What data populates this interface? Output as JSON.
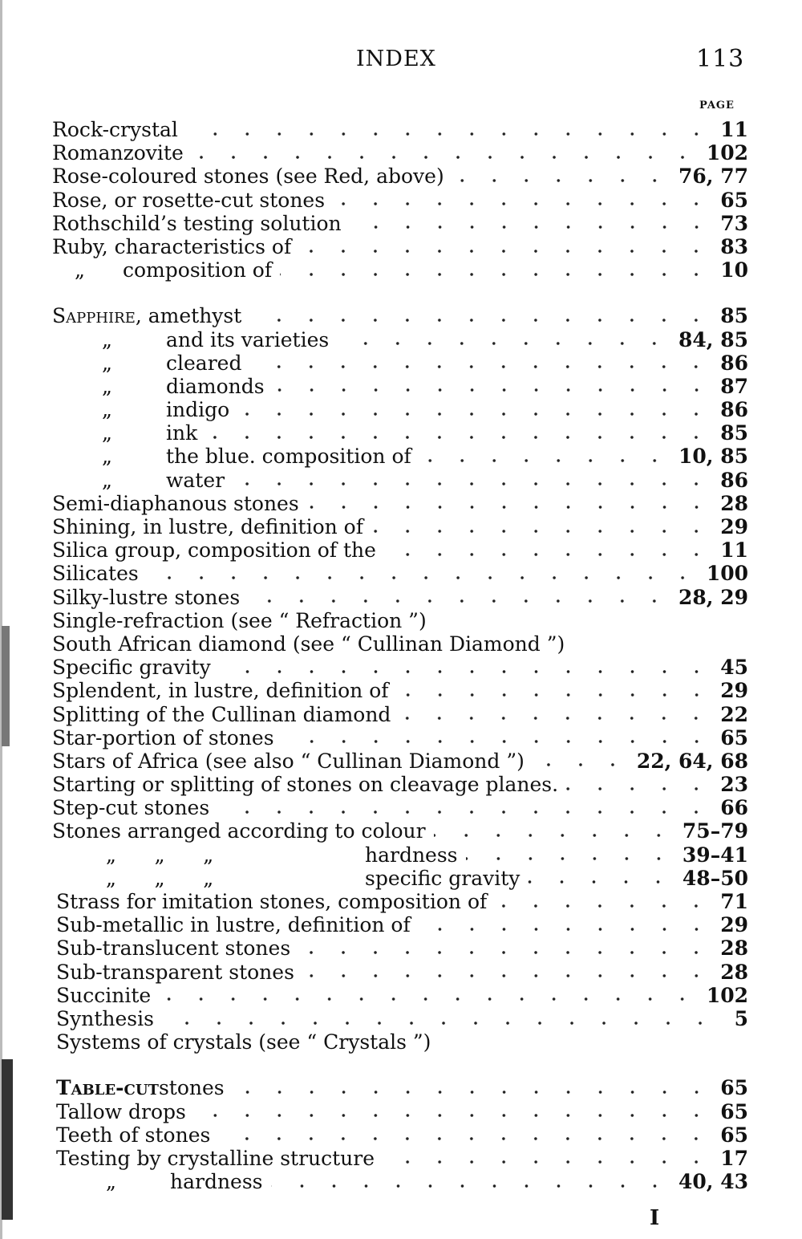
{
  "header": {
    "title": "INDEX",
    "page_number": "113",
    "page_column_label": "PAGE"
  },
  "entries": [
    {
      "text": "Rock-crystal",
      "pages": "11"
    },
    {
      "text": "Romanzovite",
      "pages": "102"
    },
    {
      "text": "Rose-coloured stones (see Red, above)",
      "pages": "76, 77"
    },
    {
      "text": "Rose, or rosette-cut stones",
      "pages": "65"
    },
    {
      "text": "Rothschild’s testing solution",
      "pages": "73"
    },
    {
      "text": "Ruby, characteristics of",
      "pages": "83"
    },
    {
      "ditto": "„",
      "text": "composition of",
      "pages": "10",
      "indent": 1
    },
    {
      "blank": true
    },
    {
      "head": "Sapphire",
      "text": ", amethyst",
      "pages": "85"
    },
    {
      "ditto": "„",
      "text": "and its varieties",
      "pages": "84, 85",
      "indent": 2
    },
    {
      "ditto": "„",
      "text": "cleared",
      "pages": "86",
      "indent": 2
    },
    {
      "ditto": "„",
      "text": "diamonds",
      "pages": "87",
      "indent": 2
    },
    {
      "ditto": "„",
      "text": "indigo",
      "pages": "86",
      "indent": 2
    },
    {
      "ditto": "„",
      "text": "ink",
      "pages": "85",
      "indent": 2
    },
    {
      "ditto": "„",
      "text": "the blue. composition of",
      "pages": "10, 85",
      "indent": 2
    },
    {
      "ditto": "„",
      "text": "water",
      "pages": "86",
      "indent": 2
    },
    {
      "text": "Semi-diaphanous stones",
      "pages": "28"
    },
    {
      "text": "Shining, in lustre, definition of",
      "pages": "29"
    },
    {
      "text": "Silica group, composition of the",
      "pages": "11"
    },
    {
      "text": "Silicates",
      "pages": "100"
    },
    {
      "text": "Silky-lustre stones",
      "pages": "28, 29"
    },
    {
      "text": "Single-refraction (see “ Refraction ”)",
      "pages": ""
    },
    {
      "text": "South African diamond (see “ Cullinan Diamond ”)",
      "pages": ""
    },
    {
      "text": "Specific gravity",
      "pages": "45"
    },
    {
      "text": "Splendent, in lustre, definition of",
      "pages": "29"
    },
    {
      "text": "Splitting of the Cullinan diamond",
      "pages": "22"
    },
    {
      "text": "Star-portion of stones",
      "pages": "65"
    },
    {
      "text": "Stars of Africa (see also “ Cullinan Diamond ”)",
      "pages": "22, 64, 68"
    },
    {
      "text": "Starting or splitting of stones on cleavage planes.",
      "pages": "23"
    },
    {
      "text": "Step-cut stones",
      "pages": "66"
    },
    {
      "text": "Stones arranged according to colour",
      "pages": "75–79"
    },
    {
      "ditto": "„      „      „",
      "text": "hardness",
      "pages": "39–41",
      "indent": 3
    },
    {
      "ditto": "„      „      „",
      "text": "specific gravity",
      "pages": "48–50",
      "indent": 3
    },
    {
      "text": "Strass for imitation stones, composition of",
      "pages": "71"
    },
    {
      "text": "Sub-metallic in lustre, definition of",
      "pages": "29"
    },
    {
      "text": "Sub-translucent stones",
      "pages": "28"
    },
    {
      "text": "Sub-transparent stones",
      "pages": "28"
    },
    {
      "text": "Succinite",
      "pages": "102"
    },
    {
      "text": "Synthesis",
      "pages": "5"
    },
    {
      "text": "Systems of crystals (see “ Crystals ”)",
      "pages": ""
    },
    {
      "blank": true
    },
    {
      "head": "Table-cut",
      "text": " stones",
      "pages": "65"
    },
    {
      "text": "Tallow drops",
      "pages": "65"
    },
    {
      "text": "Teeth of stones",
      "pages": "65"
    },
    {
      "text": "Testing by crystalline structure",
      "pages": "17"
    },
    {
      "ditto": "„",
      "text": "hardness",
      "pages": "40, 43",
      "indent": 2
    }
  ],
  "footer": {
    "signature": "I"
  }
}
